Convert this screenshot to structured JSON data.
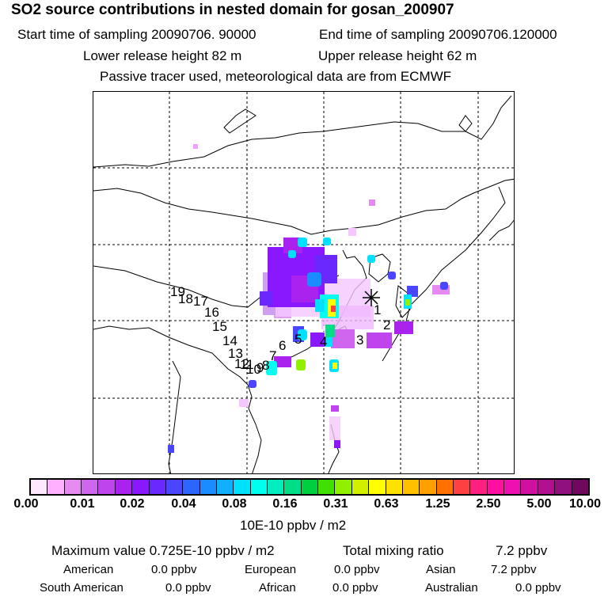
{
  "header": {
    "title": "SO2 source contributions in nested domain for gosan_200907",
    "start_label": "Start time of sampling 20090706. 90000",
    "end_label": "End time of sampling 20090706.120000",
    "lower_label": "Lower release height   82 m",
    "upper_label": "Upper release height   62 m",
    "tracer_label": "Passive tracer used, meteorological data are from ECMWF"
  },
  "map": {
    "receptor_symbol": "✳",
    "trajectory_labels": [
      "1",
      "2",
      "3",
      "4",
      "5",
      "6",
      "7",
      "8",
      "9",
      "10",
      "11",
      "12",
      "13",
      "14",
      "15",
      "16",
      "17",
      "18",
      "19"
    ]
  },
  "colorbar": {
    "colors": [
      "#ffe8ff",
      "#ffb0ff",
      "#e58af0",
      "#d166ee",
      "#c044ee",
      "#aa22ee",
      "#8a18ff",
      "#6a28ff",
      "#4a46ff",
      "#2a66ff",
      "#1a8cff",
      "#10b0ff",
      "#00e0ff",
      "#00ffee",
      "#00eec0",
      "#00dd88",
      "#00d040",
      "#40e000",
      "#90f000",
      "#d0f000",
      "#ffff00",
      "#ffe000",
      "#ffc000",
      "#ffa000",
      "#ff7000",
      "#ff4040",
      "#ff2080",
      "#ff10a0",
      "#ee10b0",
      "#d010a0",
      "#b01090",
      "#901080",
      "#700860"
    ],
    "ticks": [
      "0.00",
      "0.01",
      "0.02",
      "0.04",
      "0.08",
      "0.16",
      "0.31",
      "0.63",
      "1.25",
      "2.50",
      "5.00",
      "10.00"
    ],
    "unit": "10E-10 ppbv / m2"
  },
  "stats": {
    "max_label": "Maximum value  0.725E-10 ppbv / m2",
    "total_label": "Total mixing ratio",
    "total_value": "7.2 ppbv",
    "american_label": "American",
    "american_value": "0.0 ppbv",
    "european_label": "European",
    "european_value": "0.0 ppbv",
    "asian_label": "Asian",
    "asian_value": "7.2 ppbv",
    "south_american_label": "South American",
    "south_american_value": "0.0 ppbv",
    "african_label": "African",
    "african_value": "0.0 ppbv",
    "australian_label": "Australian",
    "australian_value": "0.0 ppbv"
  }
}
